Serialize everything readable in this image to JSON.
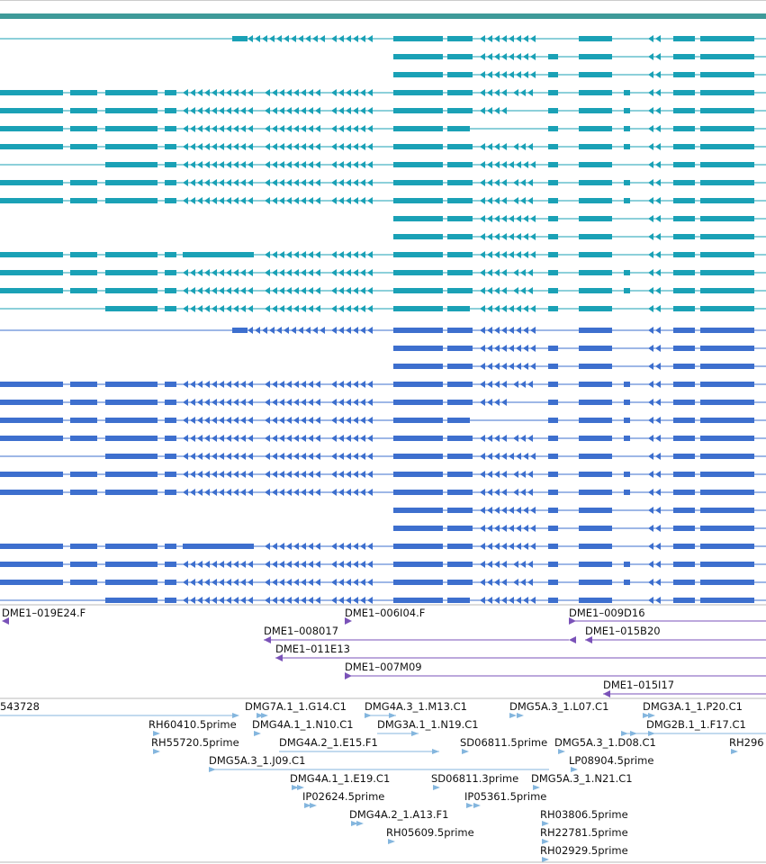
{
  "palette": {
    "track_bar": "#3f9a99",
    "teal": "#1aa1b6",
    "blue": "#3d6fce",
    "purple": "#7a52b8",
    "est": "#84b6de",
    "divider": "#b8b8b8",
    "text": "#111111"
  },
  "transcripts": {
    "teal_group": {
      "color_name": "teal",
      "count": 16
    },
    "blue_group": {
      "color_name": "blue",
      "count": 16
    }
  },
  "bac_ends": [
    {
      "label": "DME1–019E24.F"
    },
    {
      "label": "DME1–006I04.F"
    },
    {
      "label": "DME1–009D16"
    },
    {
      "label": "DME1–008017"
    },
    {
      "label": "DME1–015B20"
    },
    {
      "label": "DME1–011E13"
    },
    {
      "label": "DME1–007M09"
    },
    {
      "label": "DME1–015I17"
    }
  ],
  "ests": [
    {
      "label": "543728"
    },
    {
      "label": "DMG7A.1_1.G14.C1"
    },
    {
      "label": "DMG4A.3_1.M13.C1"
    },
    {
      "label": "DMG5A.3_1.L07.C1"
    },
    {
      "label": "DMG3A.1_1.P20.C1"
    },
    {
      "label": "RH60410.5prime"
    },
    {
      "label": "DMG4A.1_1.N10.C1"
    },
    {
      "label": "DMG3A.1_1.N19.C1"
    },
    {
      "label": "DMG2B.1_1.F17.C1"
    },
    {
      "label": "RH55720.5prime"
    },
    {
      "label": "DMG4A.2_1.E15.F1"
    },
    {
      "label": "SD06811.5prime"
    },
    {
      "label": "DMG5A.3_1.D08.C1"
    },
    {
      "label": "RH296"
    },
    {
      "label": "DMG5A.3_1.J09.C1"
    },
    {
      "label": "LP08904.5prime"
    },
    {
      "label": "DMG4A.1_1.E19.C1"
    },
    {
      "label": "SD06811.3prime"
    },
    {
      "label": "DMG5A.3_1.N21.C1"
    },
    {
      "label": "IP02624.5prime"
    },
    {
      "label": "IP05361.5prime"
    },
    {
      "label": "DMG4A.2_1.A13.F1"
    },
    {
      "label": "RH03806.5prime"
    },
    {
      "label": "RH05609.5prime"
    },
    {
      "label": "RH22781.5prime"
    },
    {
      "label": "RH02929.5prime"
    }
  ]
}
